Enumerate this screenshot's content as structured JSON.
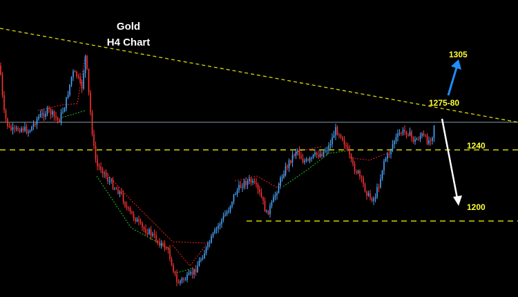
{
  "chart_data": {
    "type": "candlestick",
    "title": "Gold",
    "subtitle": "H4 Chart",
    "levels": [
      {
        "label": "1240",
        "price": 1240,
        "style": "dashed",
        "color": "#ffff00"
      },
      {
        "label": "1200",
        "price": 1200,
        "style": "dashed",
        "color": "#ffff00"
      }
    ],
    "trendline": {
      "style": "dashed",
      "color": "#ffff00",
      "description": "descending resistance"
    },
    "annotations": [
      {
        "text": "1305",
        "arrow": "up",
        "arrow_color": "#1e90ff"
      },
      {
        "text": "1275-80",
        "arrow": "down",
        "arrow_color": "#ffffff"
      },
      {
        "text": "1240"
      },
      {
        "text": "1200"
      }
    ],
    "colors": {
      "background": "#000000",
      "up_candle": "#4aa8ff",
      "down_candle": "#ff3333",
      "level_line": "#ffff00",
      "current_price_line": "#8aa0b8",
      "pattern_red": "#ff2020",
      "pattern_green": "#22cc22"
    }
  }
}
